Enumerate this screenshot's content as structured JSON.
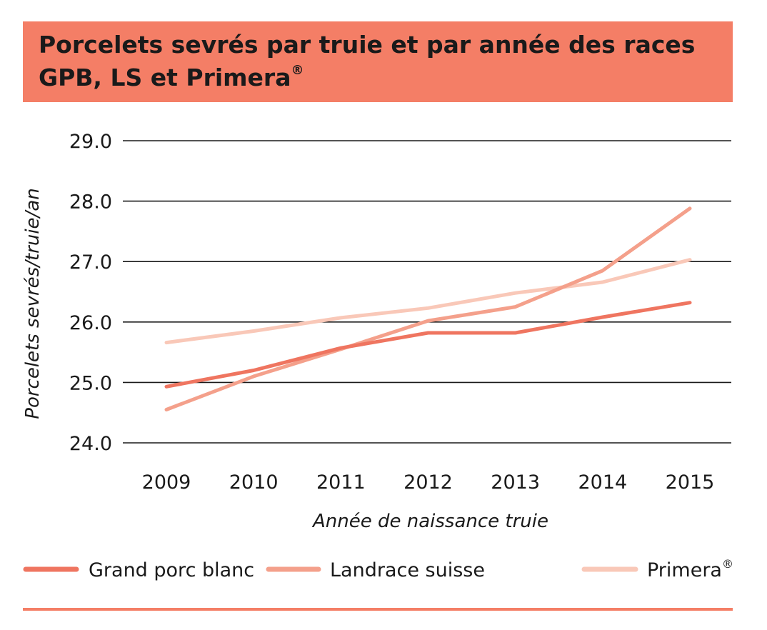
{
  "header": {
    "title_main": "Porcelets sevrés par truie et par année des races GPB, LS et Primera",
    "title_sup": "®"
  },
  "chart_data": {
    "type": "line",
    "title": "Porcelets sevrés par truie et par année des races GPB, LS et Primera®",
    "xlabel": "Année de naissance truie",
    "ylabel": "Porcelets sevrés/truie/an",
    "x": [
      2009,
      2010,
      2011,
      2012,
      2013,
      2014,
      2015
    ],
    "x_tick_labels": [
      "2009",
      "2010",
      "2011",
      "2012",
      "2013",
      "2014",
      "2015"
    ],
    "ylim": [
      24.0,
      29.0
    ],
    "y_ticks": [
      24.0,
      25.0,
      26.0,
      27.0,
      28.0,
      29.0
    ],
    "y_tick_labels": [
      "24.0",
      "25.0",
      "26.0",
      "27.0",
      "28.0",
      "29.0"
    ],
    "grid": "horizontal",
    "legend_position": "bottom",
    "series": [
      {
        "name": "Grand porc blanc",
        "color": "#ef7560",
        "values": [
          24.93,
          25.2,
          25.57,
          25.82,
          25.82,
          26.08,
          26.32
        ]
      },
      {
        "name": "Landrace suisse",
        "color": "#f4a08b",
        "values": [
          24.55,
          25.1,
          25.55,
          26.02,
          26.25,
          26.85,
          27.88
        ]
      },
      {
        "name": "Primera",
        "name_sup": "®",
        "color": "#f9c8b8",
        "values": [
          25.66,
          25.85,
          26.07,
          26.23,
          26.48,
          26.66,
          27.03
        ]
      }
    ]
  }
}
